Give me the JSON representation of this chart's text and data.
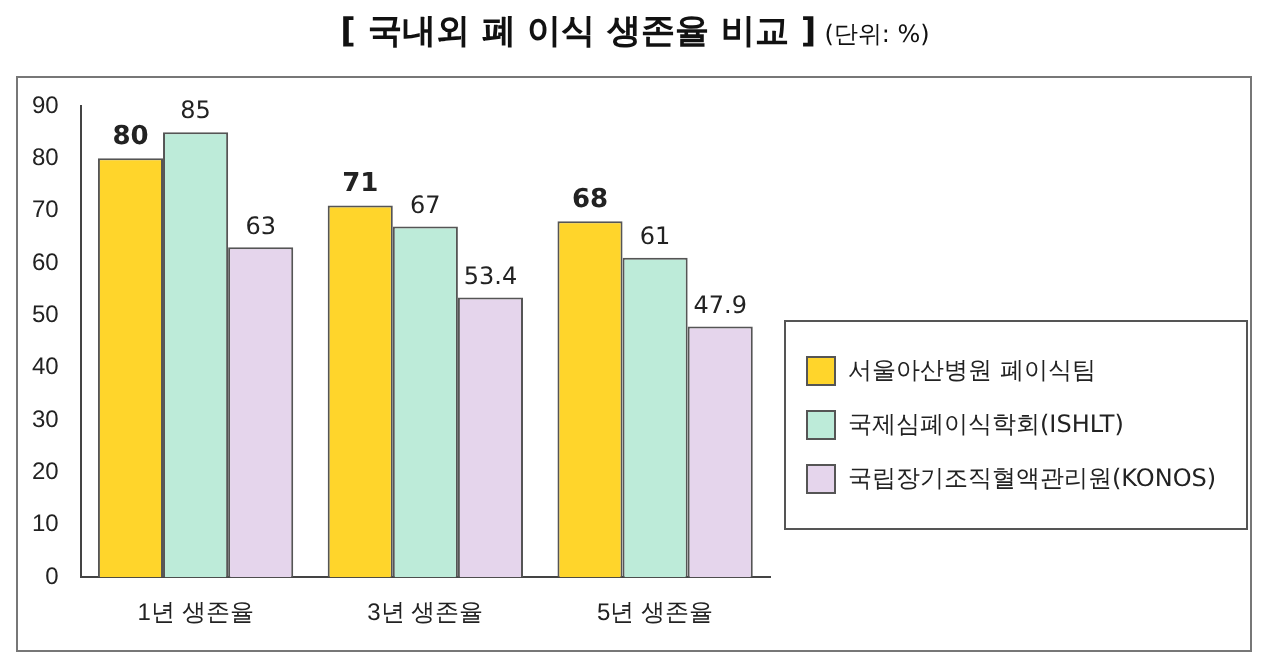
{
  "chart_data": {
    "type": "bar",
    "title": "[ 국내외 폐 이식 생존율 비교 ]",
    "subtitle": "(단위: %)",
    "categories": [
      "1년 생존율",
      "3년 생존율",
      "5년 생존율"
    ],
    "series": [
      {
        "name": "서울아산병원 폐이식팀",
        "color": "#ffd52b",
        "values": [
          80,
          71,
          68
        ]
      },
      {
        "name": "국제심폐이식학회(ISHLT)",
        "color": "#bdebd9",
        "values": [
          85,
          67,
          61
        ]
      },
      {
        "name": "국립장기조직혈액관리원(KONOS)",
        "color": "#e5d5ec",
        "values": [
          63,
          53.4,
          47.9
        ]
      }
    ],
    "ylim": [
      0,
      90
    ],
    "yticks": [
      0,
      10,
      20,
      30,
      40,
      50,
      60,
      70,
      80,
      90
    ],
    "grid": false,
    "legend": "right",
    "data_labels": true
  }
}
